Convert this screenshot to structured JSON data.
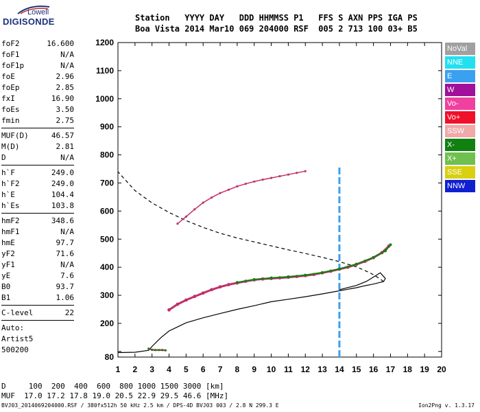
{
  "logo": {
    "line1": "Lowell",
    "line2": "DIGISONDE"
  },
  "header": {
    "labels": "Station   YYYY DAY   DDD HHMMSS P1   FFS S AXN PPS IGA PS",
    "values": "Boa Vista 2014 Mar10 069 204000 RSF  005 2 713 100 03+ B5"
  },
  "params": {
    "group1": [
      {
        "k": "foF2",
        "v": "16.600"
      },
      {
        "k": "foF1",
        "v": "N/A"
      },
      {
        "k": "foF1p",
        "v": "N/A"
      },
      {
        "k": "foE",
        "v": "2.96"
      },
      {
        "k": "foEp",
        "v": "2.85"
      },
      {
        "k": "fxI",
        "v": "16.90"
      },
      {
        "k": "foEs",
        "v": "3.50"
      },
      {
        "k": "fmin",
        "v": "2.75"
      }
    ],
    "group2": [
      {
        "k": "MUF(D)",
        "v": "46.57"
      },
      {
        "k": "M(D)",
        "v": "2.81"
      },
      {
        "k": "D",
        "v": "N/A"
      }
    ],
    "group3": [
      {
        "k": "h`F",
        "v": "249.0"
      },
      {
        "k": "h`F2",
        "v": "249.0"
      },
      {
        "k": "h`E",
        "v": "104.4"
      },
      {
        "k": "h`Es",
        "v": "103.8"
      }
    ],
    "group4": [
      {
        "k": "hmF2",
        "v": "348.6"
      },
      {
        "k": "hmF1",
        "v": "N/A"
      },
      {
        "k": "hmE",
        "v": "97.7"
      },
      {
        "k": "yF2",
        "v": "71.6"
      },
      {
        "k": "yF1",
        "v": "N/A"
      },
      {
        "k": "yE",
        "v": "7.6"
      },
      {
        "k": "B0",
        "v": "93.7"
      },
      {
        "k": "B1",
        "v": "1.06"
      }
    ],
    "group5": [
      {
        "k": "C-level",
        "v": "22"
      }
    ],
    "auto": [
      "Auto:",
      "Artist5",
      "500200"
    ]
  },
  "legend": [
    {
      "label": "NoVal",
      "color": "#a0a0a0"
    },
    {
      "label": "NNE",
      "color": "#22e0f0"
    },
    {
      "label": "E",
      "color": "#3aa0f0"
    },
    {
      "label": "W",
      "color": "#a0109a"
    },
    {
      "label": "Vo-",
      "color": "#f040a0"
    },
    {
      "label": "Vo+",
      "color": "#f0102a"
    },
    {
      "label": "SSW",
      "color": "#f0a8a8"
    },
    {
      "label": "X-",
      "color": "#108010"
    },
    {
      "label": "X+",
      "color": "#70c050"
    },
    {
      "label": "SSE",
      "color": "#d8d010"
    },
    {
      "label": "NNW",
      "color": "#1020d0"
    }
  ],
  "bottom": {
    "d_line": "D     100  200  400  600  800 1000 1500 3000 [km]",
    "muf_line": "MUF  17.0 17.2 17.8 19.0 20.5 22.9 29.5 46.6 [MHz]"
  },
  "footer": {
    "text": "BVJ03_2014069204000.RSF / 380fx512h 50 kHz 2.5 km / DPS-4D BVJ03 003 / 2.8 N 299.3 E",
    "version": "Ion2Png v. 1.3.17"
  },
  "chart_data": {
    "type": "scatter",
    "xlim": [
      1,
      20
    ],
    "ylim": [
      80,
      1200
    ],
    "xticks": [
      1,
      2,
      3,
      4,
      5,
      6,
      7,
      8,
      9,
      10,
      11,
      12,
      13,
      14,
      15,
      16,
      17,
      18,
      19,
      20
    ],
    "yticks": [
      80,
      100,
      200,
      300,
      400,
      500,
      600,
      700,
      800,
      900,
      1000,
      1100,
      1200
    ],
    "grid": false,
    "colors": {
      "trace": "#c0306a",
      "trace2": "#108010",
      "profile": "#000000"
    },
    "o_trace": {
      "x": [
        4.0,
        4.5,
        5.0,
        5.5,
        6.0,
        6.5,
        7.0,
        7.5,
        8.0,
        8.5,
        9.0,
        9.5,
        10.0,
        10.5,
        11.0,
        11.5,
        12.0,
        12.5,
        13.0,
        13.5,
        14.0,
        14.5,
        15.0,
        15.5,
        16.0,
        16.5,
        16.9
      ],
      "y": [
        248,
        268,
        283,
        296,
        308,
        320,
        330,
        338,
        344,
        350,
        355,
        358,
        360,
        362,
        364,
        367,
        370,
        374,
        380,
        386,
        393,
        400,
        410,
        421,
        434,
        452,
        475
      ]
    },
    "x_trace": {
      "x": [
        8.0,
        9.0,
        10.0,
        11.0,
        12.0,
        13.0,
        14.0,
        15.0,
        16.0,
        16.7,
        17.0
      ],
      "y": [
        346,
        356,
        362,
        366,
        372,
        381,
        394,
        411,
        435,
        458,
        480
      ]
    },
    "second_hop": {
      "x": [
        4.5,
        5.0,
        5.5,
        6.0,
        6.5,
        7.0,
        7.5,
        8.0,
        8.5,
        9.0,
        9.5,
        10.0,
        10.5,
        11.0,
        11.5,
        12.0
      ],
      "y": [
        555,
        580,
        606,
        630,
        648,
        664,
        676,
        688,
        697,
        705,
        712,
        718,
        724,
        730,
        736,
        742
      ]
    },
    "es_trace": {
      "x": [
        2.8,
        3.0,
        3.2,
        3.4,
        3.6,
        3.8
      ],
      "y": [
        110,
        106,
        105,
        105,
        105,
        104
      ]
    },
    "profile": {
      "x": [
        1.0,
        2.0,
        2.8,
        3.0,
        3.5,
        4.0,
        5.0,
        6.0,
        7.0,
        8.0,
        9.0,
        10.0,
        11.0,
        12.0,
        13.0,
        14.0,
        15.0,
        15.5,
        16.0,
        16.4,
        16.6
      ],
      "y": [
        96,
        97,
        104,
        118,
        148,
        173,
        202,
        220,
        235,
        250,
        263,
        277,
        286,
        295,
        305,
        316,
        327,
        334,
        340,
        346,
        349
      ]
    },
    "profile_topside": {
      "x": [
        16.6,
        16.3,
        15.8,
        15.0,
        14.0,
        13.0,
        12.0,
        11.0,
        10.0,
        9.0,
        8.0,
        7.0,
        6.0,
        5.0,
        4.0,
        3.0,
        2.0,
        1.0
      ],
      "y": [
        349,
        362,
        380,
        401,
        420,
        435,
        449,
        462,
        476,
        490,
        504,
        521,
        542,
        566,
        595,
        629,
        673,
        740
      ]
    },
    "vertical_line": {
      "x": 14.0,
      "y": [
        80,
        760
      ]
    },
    "ordinary_below": {
      "x": [
        14.0,
        15.0,
        15.6,
        16.0,
        16.4,
        16.7,
        16.6
      ],
      "y": [
        320,
        335,
        350,
        365,
        380,
        360,
        349
      ]
    }
  }
}
